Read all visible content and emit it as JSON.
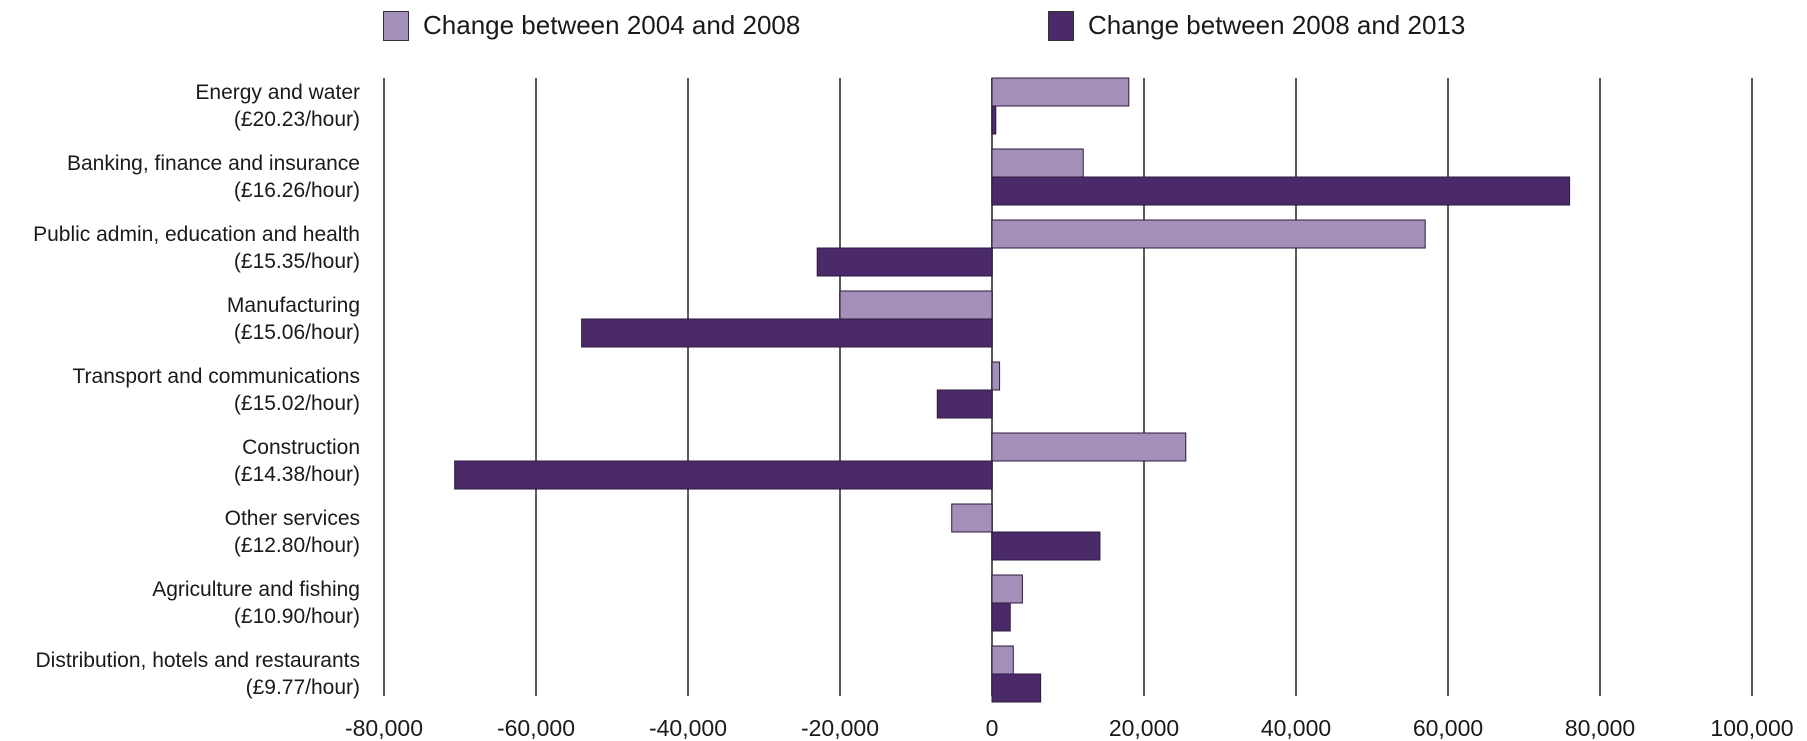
{
  "chart_data": {
    "type": "bar",
    "orientation": "horizontal",
    "categories": [
      [
        "Energy and water",
        "(£20.23/hour)"
      ],
      [
        "Banking, finance and insurance",
        "(£16.26/hour)"
      ],
      [
        "Public admin, education and health",
        "(£15.35/hour)"
      ],
      [
        "Manufacturing",
        "(£15.06/hour)"
      ],
      [
        "Transport and communications",
        "(£15.02/hour)"
      ],
      [
        "Construction",
        "(£14.38/hour)"
      ],
      [
        "Other services",
        "(£12.80/hour)"
      ],
      [
        "Agriculture and fishing",
        "(£10.90/hour)"
      ],
      [
        "Distribution, hotels and restaurants",
        "(£9.77/hour)"
      ]
    ],
    "series": [
      {
        "name": "Change between 2004 and 2008",
        "color": "#a48fb8",
        "values": [
          18000,
          12000,
          57000,
          -20000,
          1000,
          25500,
          -5300,
          4000,
          2800
        ]
      },
      {
        "name": "Change between 2008 and 2013",
        "color": "#4b2a69",
        "values": [
          500,
          76000,
          -23000,
          -54000,
          -7200,
          -70700,
          14200,
          2400,
          6400
        ]
      }
    ],
    "xlim": [
      -80000,
      100000
    ],
    "xticks": [
      "-80,000",
      "-60,000",
      "-40,000",
      "-20,000",
      "0",
      "20,000",
      "40,000",
      "60,000",
      "80,000",
      "100,000"
    ],
    "grid": "vertical",
    "legend_position": "top"
  }
}
